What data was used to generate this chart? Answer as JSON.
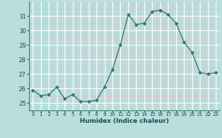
{
  "x": [
    0,
    1,
    2,
    3,
    4,
    5,
    6,
    7,
    8,
    9,
    10,
    11,
    12,
    13,
    14,
    15,
    16,
    17,
    18,
    19,
    20,
    21,
    22,
    23
  ],
  "y": [
    25.9,
    25.5,
    25.6,
    26.1,
    25.3,
    25.6,
    25.1,
    25.1,
    25.2,
    26.1,
    27.3,
    29.0,
    31.1,
    30.4,
    30.5,
    31.3,
    31.4,
    31.1,
    30.5,
    29.2,
    28.5,
    27.1,
    27.0,
    27.1
  ],
  "title": "",
  "xlabel": "Humidex (Indice chaleur)",
  "ylabel": "",
  "ylim": [
    24.5,
    32.0
  ],
  "xlim": [
    -0.5,
    23.5
  ],
  "line_color": "#2e7d6e",
  "marker_color": "#2e7d6e",
  "bg_color": "#b8dede",
  "grid_major_color": "#ffffff",
  "grid_minor_color": "#e8b8b8",
  "yticks": [
    25,
    26,
    27,
    28,
    29,
    30,
    31
  ],
  "xtick_labels": [
    "0",
    "1",
    "2",
    "3",
    "4",
    "5",
    "6",
    "7",
    "8",
    "9",
    "10",
    "11",
    "12",
    "13",
    "14",
    "15",
    "16",
    "17",
    "18",
    "19",
    "20",
    "21",
    "22",
    "23"
  ]
}
